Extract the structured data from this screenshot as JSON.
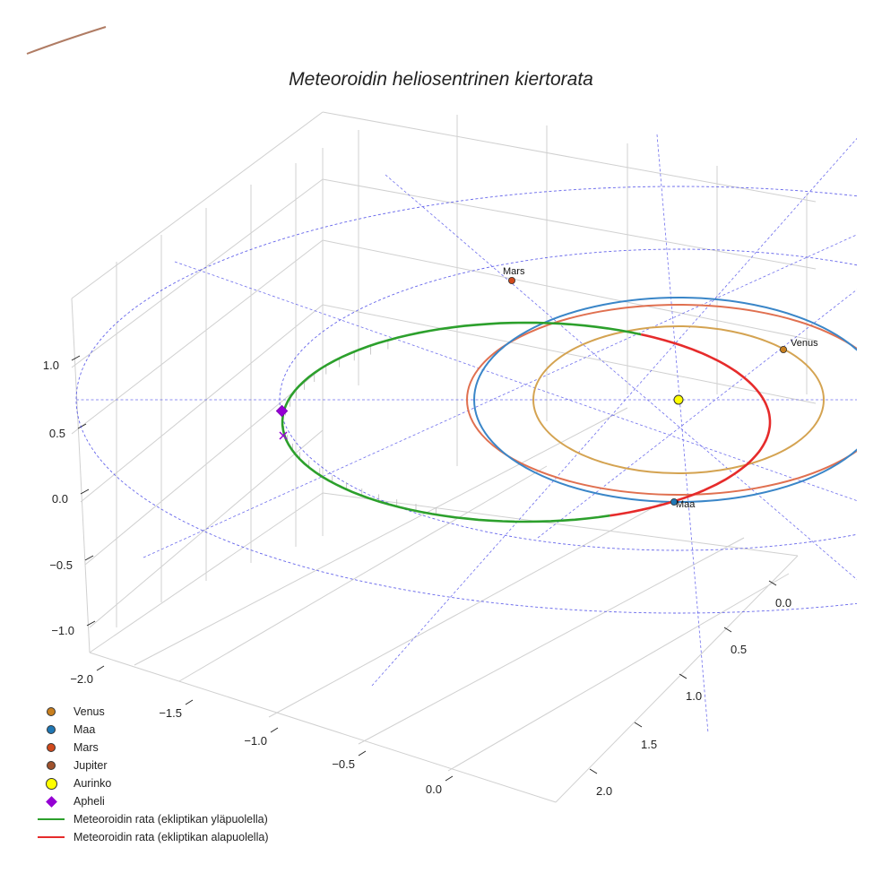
{
  "chart_data": {
    "type": "3d-orbit",
    "title": "Meteoroidin heliosentrinen kiertorata",
    "xlabel": "",
    "ylabel": "",
    "zlabel": "",
    "x_ticks": [
      -2.0,
      -1.5,
      -1.0,
      -0.5,
      0.0
    ],
    "y_ticks": [
      0.0,
      0.5,
      1.0,
      1.5,
      2.0
    ],
    "z_ticks": [
      1.0,
      0.5,
      0.0,
      -0.5,
      -1.0
    ],
    "tick_labels": {
      "x": [
        "−2.0",
        "−1.5",
        "−1.0",
        "−0.5",
        "0.0"
      ],
      "y": [
        "0.0",
        "0.5",
        "1.0",
        "1.5",
        "2.0"
      ],
      "z": [
        "1.0",
        "0.5",
        "0.0",
        "−0.5",
        "−1.0"
      ]
    },
    "grid": true,
    "legend_position": "bottom-left",
    "bodies": [
      {
        "name": "Venus",
        "label": "Venus",
        "orbit_radius_au": 0.72,
        "color": "#c87f1e",
        "orbit_color": "#d4a351"
      },
      {
        "name": "Maa",
        "label": "Maa",
        "orbit_radius_au": 1.0,
        "color": "#1f77b4",
        "orbit_color": "#3a86c8"
      },
      {
        "name": "Mars",
        "label": "Mars",
        "orbit_radius_au": 1.52,
        "color": "#d14a1c",
        "orbit_color": "#e07050"
      },
      {
        "name": "Jupiter",
        "label": "",
        "orbit_radius_au": 5.2,
        "color": "#a0522d",
        "orbit_color": "#b07c64"
      }
    ],
    "sun": {
      "name": "Aurinko",
      "color": "#ffff00"
    },
    "meteoroid": {
      "aphelion_au": 1.9,
      "perihelion_au": 0.98,
      "above_ecliptic_color": "#2ca02c",
      "below_ecliptic_color": "#e62b2b",
      "apheli_color": "#9400d3"
    },
    "reference_circles_color": "#4a4ae8"
  },
  "legend": [
    {
      "key": "venus",
      "label": "Venus",
      "kind": "dot",
      "color": "#c87f1e"
    },
    {
      "key": "maa",
      "label": "Maa",
      "kind": "dot",
      "color": "#1f77b4"
    },
    {
      "key": "mars",
      "label": "Mars",
      "kind": "dot",
      "color": "#d14a1c"
    },
    {
      "key": "jupiter",
      "label": "Jupiter",
      "kind": "dot",
      "color": "#a0522d"
    },
    {
      "key": "aurinko",
      "label": "Aurinko",
      "kind": "sun",
      "color": "#ffff00"
    },
    {
      "key": "apheli",
      "label": "Apheli",
      "kind": "diamond",
      "color": "#9400d3"
    },
    {
      "key": "above",
      "label": "Meteoroidin rata (ekliptikan yläpuolella)",
      "kind": "line",
      "color": "#2ca02c"
    },
    {
      "key": "below",
      "label": "Meteoroidin rata (ekliptikan alapuolella)",
      "kind": "line",
      "color": "#e62b2b"
    }
  ]
}
